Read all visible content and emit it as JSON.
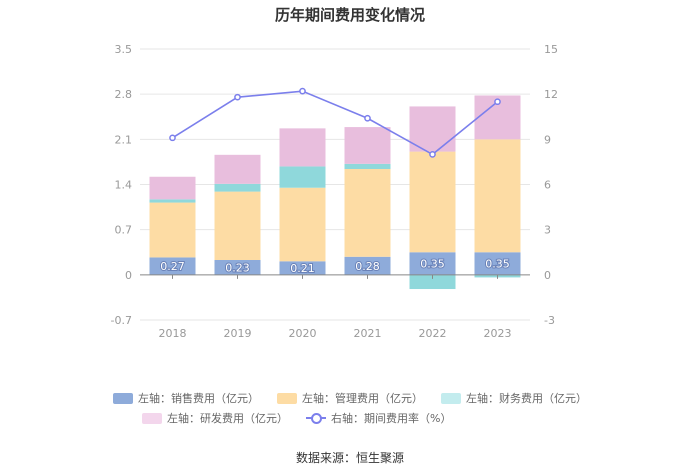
{
  "chart_data": {
    "type": "bar",
    "title": "历年期间费用变化情况",
    "categories": [
      "2018",
      "2019",
      "2020",
      "2021",
      "2022",
      "2023"
    ],
    "left_axis": {
      "ylim": [
        -0.7,
        3.5
      ],
      "ticks": [
        "-0.7",
        "0",
        "0.7",
        "1.4",
        "2.1",
        "2.8",
        "3.5"
      ]
    },
    "right_axis": {
      "ylim": [
        -3,
        15
      ],
      "ticks": [
        "-3",
        "0",
        "3",
        "6",
        "9",
        "12",
        "15"
      ]
    },
    "series": [
      {
        "name": "左轴：销售费用（亿元）",
        "axis": "left",
        "stack": true,
        "color": "#8eabda",
        "values": [
          0.27,
          0.23,
          0.21,
          0.28,
          0.35,
          0.35
        ],
        "labels": [
          "0.27",
          "0.23",
          "0.21",
          "0.28",
          "0.35",
          "0.35"
        ]
      },
      {
        "name": "左轴：管理费用（亿元）",
        "axis": "left",
        "stack": true,
        "color": "#fddca4",
        "values": [
          0.85,
          1.06,
          1.14,
          1.36,
          1.56,
          1.75
        ]
      },
      {
        "name": "左轴：财务费用（亿元）",
        "axis": "left",
        "stack": true,
        "color": "#8fd8db",
        "values": [
          0.05,
          0.12,
          0.33,
          0.08,
          -0.22,
          -0.04
        ]
      },
      {
        "name": "左轴：研发费用（亿元）",
        "axis": "left",
        "stack": true,
        "color": "#e8bedd",
        "values": [
          0.35,
          0.45,
          0.59,
          0.57,
          0.7,
          0.68
        ]
      },
      {
        "name": "右轴：期间费用率（%）",
        "axis": "right",
        "type": "line",
        "color": "#7b7fec",
        "values": [
          9.1,
          11.8,
          12.2,
          10.4,
          8.0,
          11.5
        ]
      }
    ],
    "legend_position": "bottom",
    "grid": true
  },
  "source": "数据来源：恒生聚源"
}
